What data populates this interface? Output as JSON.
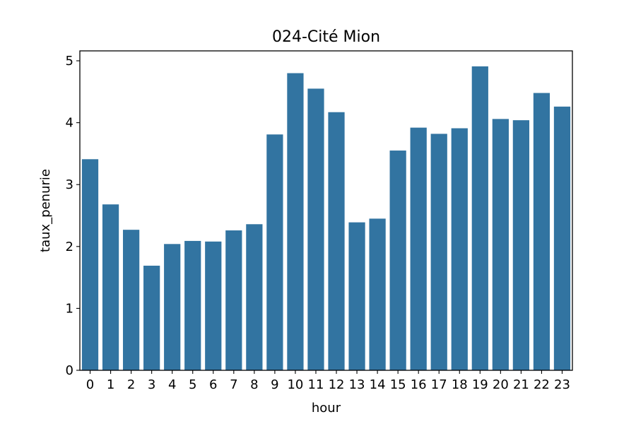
{
  "chart_data": {
    "type": "bar",
    "title": "024-Cité Mion",
    "xlabel": "hour",
    "ylabel": "taux_penurie",
    "categories": [
      "0",
      "1",
      "2",
      "3",
      "4",
      "5",
      "6",
      "7",
      "8",
      "9",
      "10",
      "11",
      "12",
      "13",
      "14",
      "15",
      "16",
      "17",
      "18",
      "19",
      "20",
      "21",
      "22",
      "23"
    ],
    "values": [
      3.41,
      2.68,
      2.27,
      1.69,
      2.04,
      2.09,
      2.08,
      2.26,
      2.36,
      3.81,
      4.8,
      4.55,
      4.17,
      2.39,
      2.45,
      3.55,
      3.92,
      3.82,
      3.91,
      4.91,
      4.06,
      4.04,
      4.48,
      4.26
    ],
    "yticks": [
      0,
      1,
      2,
      3,
      4,
      5
    ],
    "ylim": [
      0,
      5.16
    ],
    "bar_color": "#3274a1",
    "grid": false,
    "legend": "none"
  }
}
